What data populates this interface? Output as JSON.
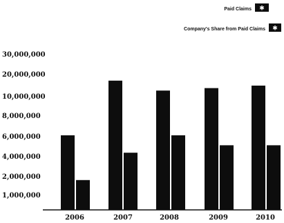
{
  "chart_data": {
    "type": "bar",
    "categories": [
      "2006",
      "2007",
      "2008",
      "2009",
      "2010"
    ],
    "y_tick_labels": [
      "1,000,000",
      "2,000,000",
      "4,000,000",
      "6,000,000",
      "8,000,000",
      "10,000,000",
      "20,000,000",
      "30,000,000"
    ],
    "ylim": [
      0,
      30000000
    ],
    "grid": false,
    "legend_placement": "top-right",
    "series": [
      {
        "name": "Paid Claims",
        "color": "#0d0d0d",
        "values": [
          15000000,
          26000000,
          24000000,
          24500000,
          25000000
        ]
      },
      {
        "name": "Company's Share from Paid Claims",
        "color": "#0d0d0d",
        "values": [
          6000000,
          11500000,
          15000000,
          13000000,
          13000000
        ]
      }
    ]
  }
}
